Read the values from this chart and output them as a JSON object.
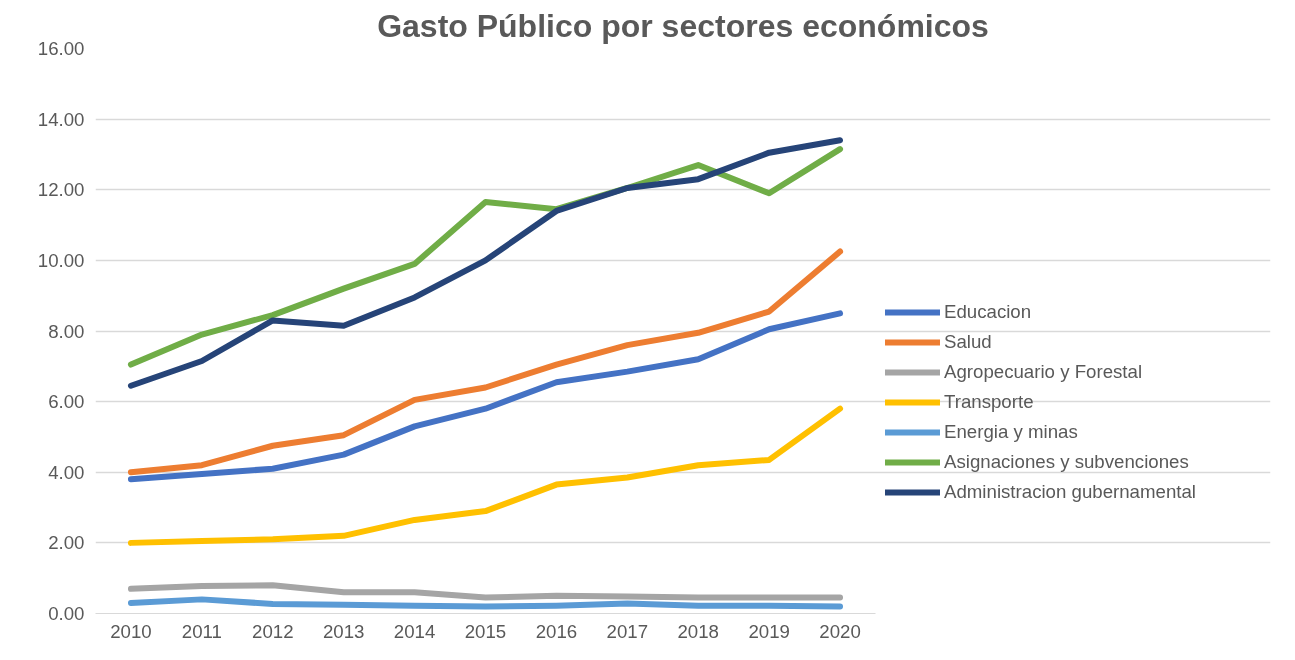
{
  "chart_data": {
    "type": "line",
    "title": "Gasto Público por sectores económicos",
    "categories": [
      "2010",
      "2011",
      "2012",
      "2013",
      "2014",
      "2015",
      "2016",
      "2017",
      "2018",
      "2019",
      "2020"
    ],
    "ylim": [
      0,
      16
    ],
    "yticks": [
      {
        "value": 0,
        "label": "0.00"
      },
      {
        "value": 2,
        "label": "2.00"
      },
      {
        "value": 4,
        "label": "4.00"
      },
      {
        "value": 6,
        "label": "6.00"
      },
      {
        "value": 8,
        "label": "8.00"
      },
      {
        "value": 10,
        "label": "10.00"
      },
      {
        "value": 12,
        "label": "12.00"
      },
      {
        "value": 14,
        "label": "14.00"
      },
      {
        "value": 16,
        "label": "16.00"
      }
    ],
    "grid": "y",
    "legend": "right",
    "marker": "none",
    "line_style": "solid",
    "series": [
      {
        "name": "Educacion",
        "color": "#4472c4",
        "values": [
          3.8,
          3.95,
          4.1,
          4.5,
          5.3,
          5.8,
          6.55,
          6.85,
          7.2,
          8.05,
          8.5
        ]
      },
      {
        "name": "Salud",
        "color": "#ed7d31",
        "values": [
          4.0,
          4.2,
          4.75,
          5.05,
          6.05,
          6.4,
          7.05,
          7.6,
          7.95,
          8.55,
          10.25
        ]
      },
      {
        "name": "Agropecuario y Forestal",
        "color": "#a5a5a5",
        "values": [
          0.7,
          0.78,
          0.8,
          0.6,
          0.6,
          0.45,
          0.5,
          0.48,
          0.45,
          0.45,
          0.45
        ]
      },
      {
        "name": "Transporte",
        "color": "#ffc000",
        "values": [
          2.0,
          2.05,
          2.1,
          2.2,
          2.65,
          2.9,
          3.65,
          3.85,
          4.2,
          4.35,
          5.8
        ]
      },
      {
        "name": "Energia y minas",
        "color": "#5b9bd5",
        "values": [
          0.3,
          0.4,
          0.27,
          0.25,
          0.22,
          0.2,
          0.22,
          0.28,
          0.22,
          0.22,
          0.2
        ]
      },
      {
        "name": "Asignaciones y subvenciones",
        "color": "#70ad47",
        "values": [
          7.05,
          7.9,
          8.45,
          9.2,
          9.9,
          11.65,
          11.45,
          12.05,
          12.7,
          11.9,
          13.15
        ]
      },
      {
        "name": "Administracion gubernamental",
        "color": "#264478",
        "values": [
          6.45,
          7.15,
          8.3,
          8.15,
          8.95,
          10.0,
          11.4,
          12.05,
          12.3,
          13.05,
          13.4
        ]
      }
    ]
  }
}
